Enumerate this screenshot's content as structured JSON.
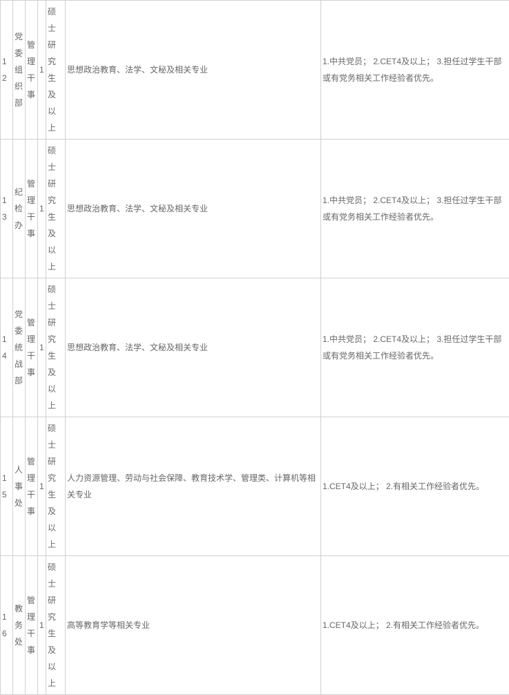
{
  "table": {
    "text_color": "#666666",
    "border_color": "#d0d0d0",
    "background_color": "#ffffff",
    "font_size": 12,
    "rows": [
      {
        "no": "12",
        "dept": "党委组织部",
        "pos": "管理干事",
        "count": "1",
        "edu": "硕士研究生及以上",
        "major": "思想政治教育、法学、文秘及相关专业",
        "req": "1.中共党员； 2.CET4及以上； 3.担任过学生干部或有党务相关工作经验者优先。"
      },
      {
        "no": "13",
        "dept": "纪检办",
        "pos": "管理干事",
        "count": "1",
        "edu": "硕士研究生及以上",
        "major": "思想政治教育、法学、文秘及相关专业",
        "req": "1.中共党员； 2.CET4及以上； 3.担任过学生干部或有党务相关工作经验者优先。"
      },
      {
        "no": "14",
        "dept": "党委统战部",
        "pos": "管理干事",
        "count": "1",
        "edu": "硕士研究生及以上",
        "major": "思想政治教育、法学、文秘及相关专业",
        "req": "1.中共党员； 2.CET4及以上； 3.担任过学生干部或有党务相关工作经验者优先。"
      },
      {
        "no": "15",
        "dept": "人事处",
        "pos": "管理干事",
        "count": "1",
        "edu": "硕士研究生及以上",
        "major": "人力资源管理、劳动与社会保障、教育技术学、管理类、计算机等相关专业",
        "req": "1.CET4及以上； 2.有相关工作经验者优先。"
      },
      {
        "no": "16",
        "dept": "教务处",
        "pos": "管理干事",
        "count": "1",
        "edu": "硕士研究生及以上",
        "major": "高等教育学等相关专业",
        "req": "1.CET4及以上； 2.有相关工作经验者优先。"
      }
    ]
  }
}
